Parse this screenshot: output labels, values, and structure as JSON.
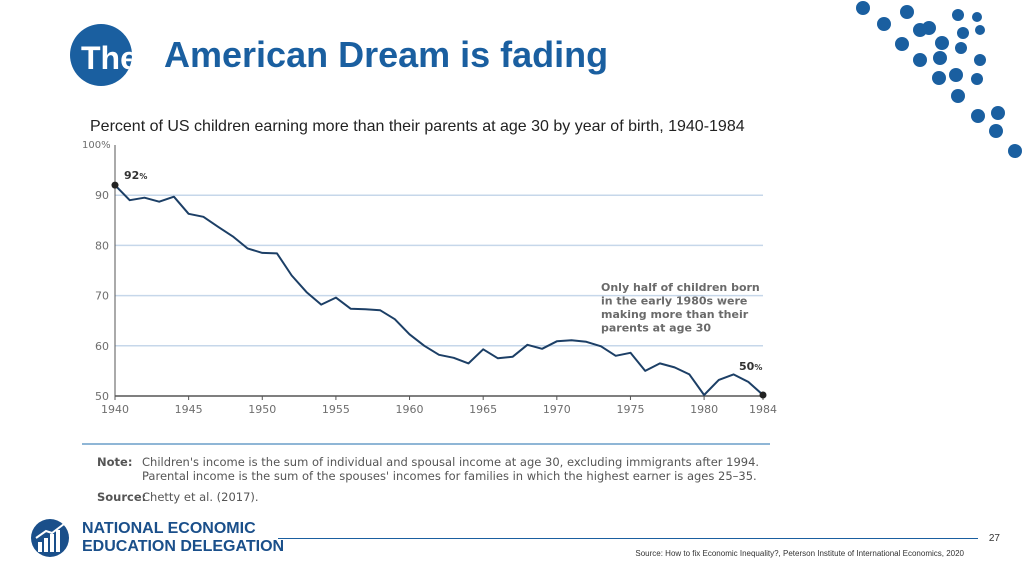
{
  "slide": {
    "title_the": "The",
    "title_rest": "American Dream is fading",
    "page_number": "27",
    "footer_source": "Source: How to fix Economic Inequality?, Peterson Institute of International Economics, 2020",
    "logo_line1": "NATIONAL ECONOMIC",
    "logo_line2": "EDUCATION DELEGATION",
    "accent_color": "#1a5fa0"
  },
  "chart_data": {
    "type": "line",
    "title": "Percent of US children earning more than their parents at age 30 by year of birth, 1940-1984",
    "x": [
      1940,
      1941,
      1942,
      1943,
      1944,
      1945,
      1946,
      1947,
      1948,
      1949,
      1950,
      1951,
      1952,
      1953,
      1954,
      1955,
      1956,
      1957,
      1958,
      1959,
      1960,
      1961,
      1962,
      1963,
      1964,
      1965,
      1966,
      1967,
      1968,
      1969,
      1970,
      1971,
      1972,
      1973,
      1974,
      1975,
      1976,
      1977,
      1978,
      1979,
      1980,
      1981,
      1982,
      1983,
      1984
    ],
    "values": [
      92,
      89,
      89.5,
      88.7,
      89.7,
      86.3,
      85.7,
      83.7,
      81.8,
      79.4,
      78.5,
      78.4,
      74,
      70.7,
      68.2,
      69.6,
      67.4,
      67.3,
      67.1,
      65.3,
      62.3,
      60,
      58.2,
      57.6,
      56.5,
      59.3,
      57.5,
      57.8,
      60.2,
      59.4,
      60.9,
      61.1,
      60.8,
      59.9,
      58,
      58.6,
      55,
      56.5,
      55.7,
      54.3,
      50.2,
      53.2,
      54.3,
      52.8,
      50.2
    ],
    "xlim": [
      1940,
      1984
    ],
    "ylim": [
      50,
      100
    ],
    "yticks": [
      50,
      60,
      70,
      80,
      90
    ],
    "ytick_labels": [
      "50",
      "60",
      "70",
      "80",
      "90"
    ],
    "ymax_label": "100%",
    "xticks": [
      1940,
      1945,
      1950,
      1955,
      1960,
      1965,
      1970,
      1975,
      1980,
      1984
    ],
    "xtick_labels": [
      "1940",
      "1945",
      "1950",
      "1955",
      "1960",
      "1965",
      "1970",
      "1975",
      "1980",
      "1984"
    ],
    "start_label_value": "92",
    "end_label_value": "50",
    "pct_sign": "%",
    "annotation_lines": [
      "Only half of children born",
      "in the early 1980s were",
      "making more than their",
      "parents at age 30"
    ],
    "line_color": "#1c3f66",
    "grid_color": "#c6d7ea"
  },
  "notes": {
    "note_label": "Note:",
    "note_line1": "Children's income is the sum of individual and spousal income at age 30, excluding immigrants after 1994.",
    "note_line2": "Parental income is the sum of the spouses' incomes for families in which the highest earner is ages 25–35.",
    "source_label": "Source:",
    "source_text": "Chetty et al. (2017)."
  }
}
